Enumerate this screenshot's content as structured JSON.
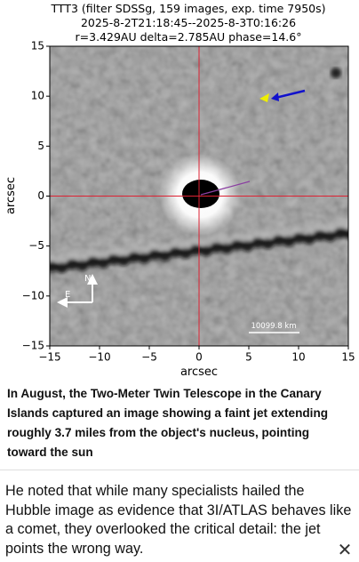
{
  "figure": {
    "title_lines": [
      "TTT3 (filter SDSSg, 159 images, exp. time 7950s)",
      "2025-8-2T21:18:45--2025-8-3T0:16:26",
      "r=3.429AU delta=2.785AU phase=14.6°"
    ],
    "xlabel": "arcsec",
    "ylabel": "arcsec",
    "xlim": [
      -15,
      15
    ],
    "ylim": [
      -15,
      15
    ],
    "xticks": [
      {
        "value": -15,
        "label": "−15"
      },
      {
        "value": -10,
        "label": "−10"
      },
      {
        "value": -5,
        "label": "−5"
      },
      0,
      5,
      10,
      15
    ],
    "yticks": [
      {
        "value": -15,
        "label": "−15"
      },
      {
        "value": -10,
        "label": "−10"
      },
      {
        "value": -5,
        "label": "−5"
      },
      0,
      5,
      10,
      15
    ],
    "scale_bar_label": "10099.8 km",
    "compass": {
      "north": "N",
      "east": "E"
    }
  },
  "caption": "In August, the Two-Meter Twin Telescope in the Canary Islands captured an image showing a faint jet extending roughly 3.7 miles from the object's nucleus, pointing toward the sun",
  "body": "He noted that while many specialists hailed the Hubble image as evidence that 3I/ATLAS behaves like a comet, they overlooked the critical detail: the jet points the wrong way.",
  "close": "✕"
}
